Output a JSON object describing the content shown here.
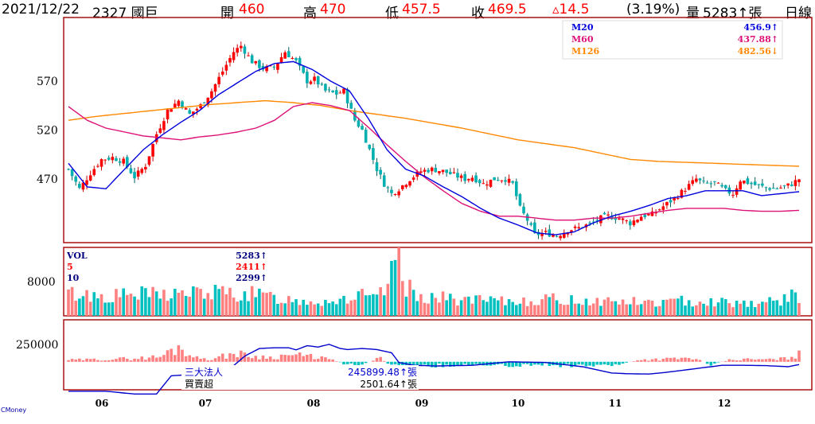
{
  "header": {
    "date": "2021/12/22",
    "stock": "2327 國巨",
    "open_label": "開",
    "open_value": "460",
    "high_label": "高",
    "high_value": "470",
    "low_label": "低",
    "low_value": "457.5",
    "close_label": "收",
    "close_value": "469.5",
    "change": "▵14.5",
    "change_pct": "(3.19%)",
    "volume_label": "量",
    "volume_value": "5283↑張",
    "period": "日線"
  },
  "colors": {
    "up": "#ff0000",
    "down": "#00b0b0",
    "ma20": "#0000dd",
    "ma60": "#dd1177",
    "ma126": "#ff8800",
    "up_vol": "#ff8080",
    "down_vol": "#00c0c0",
    "frame": "#aa1111"
  },
  "chart_data": [
    {
      "type": "candlestick",
      "ylim": [
        405,
        635
      ],
      "yticks": [
        "470",
        "520",
        "570"
      ],
      "legend": [
        {
          "name": "M20",
          "value": "456.9↑",
          "color": "#0000dd"
        },
        {
          "name": "M60",
          "value": "437.88↑",
          "color": "#dd1177"
        },
        {
          "name": "M126",
          "value": "482.56↓",
          "color": "#ff8800"
        }
      ],
      "close_anchors": [
        [
          0,
          480
        ],
        [
          3,
          460
        ],
        [
          6,
          476
        ],
        [
          9,
          490
        ],
        [
          12,
          492
        ],
        [
          15,
          488
        ],
        [
          18,
          472
        ],
        [
          21,
          484
        ],
        [
          24,
          516
        ],
        [
          27,
          540
        ],
        [
          30,
          550
        ],
        [
          33,
          536
        ],
        [
          36,
          545
        ],
        [
          39,
          560
        ],
        [
          42,
          580
        ],
        [
          45,
          600
        ],
        [
          47,
          606
        ],
        [
          50,
          590
        ],
        [
          53,
          583
        ],
        [
          56,
          584
        ],
        [
          59,
          600
        ],
        [
          62,
          590
        ],
        [
          65,
          570
        ],
        [
          67,
          572
        ],
        [
          70,
          560
        ],
        [
          73,
          557
        ],
        [
          75,
          560
        ],
        [
          78,
          530
        ],
        [
          80,
          520
        ],
        [
          82,
          500
        ],
        [
          84,
          480
        ],
        [
          86,
          465
        ],
        [
          88,
          455
        ],
        [
          90,
          460
        ],
        [
          93,
          470
        ],
        [
          96,
          478
        ],
        [
          99,
          480
        ],
        [
          102,
          478
        ],
        [
          105,
          474
        ],
        [
          108,
          470
        ],
        [
          110,
          472
        ],
        [
          113,
          465
        ],
        [
          116,
          470
        ],
        [
          119,
          470
        ],
        [
          121,
          465
        ],
        [
          123,
          440
        ],
        [
          125,
          428
        ],
        [
          127,
          413
        ],
        [
          130,
          415
        ],
        [
          133,
          412
        ],
        [
          136,
          418
        ],
        [
          139,
          420
        ],
        [
          142,
          424
        ],
        [
          145,
          430
        ],
        [
          147,
          432
        ],
        [
          150,
          430
        ],
        [
          153,
          425
        ],
        [
          156,
          432
        ],
        [
          159,
          434
        ],
        [
          162,
          442
        ],
        [
          165,
          450
        ],
        [
          168,
          460
        ],
        [
          171,
          470
        ],
        [
          173,
          465
        ],
        [
          176,
          466
        ],
        [
          179,
          458
        ],
        [
          181,
          455
        ],
        [
          183,
          469
        ],
        [
          186,
          465
        ],
        [
          189,
          462
        ],
        [
          192,
          460
        ],
        [
          195,
          462
        ],
        [
          197,
          465
        ],
        [
          199,
          470
        ]
      ],
      "ma20": [
        [
          0,
          486
        ],
        [
          4,
          462
        ],
        [
          8,
          460
        ],
        [
          12,
          480
        ],
        [
          16,
          500
        ],
        [
          20,
          515
        ],
        [
          24,
          528
        ],
        [
          28,
          540
        ],
        [
          32,
          556
        ],
        [
          36,
          568
        ],
        [
          40,
          580
        ],
        [
          44,
          588
        ],
        [
          48,
          590
        ],
        [
          52,
          582
        ],
        [
          56,
          570
        ],
        [
          60,
          560
        ],
        [
          64,
          532
        ],
        [
          68,
          500
        ],
        [
          72,
          480
        ],
        [
          76,
          473
        ],
        [
          80,
          462
        ],
        [
          84,
          452
        ],
        [
          88,
          440
        ],
        [
          92,
          430
        ],
        [
          96,
          423
        ],
        [
          100,
          415
        ],
        [
          104,
          413
        ],
        [
          108,
          416
        ],
        [
          112,
          425
        ],
        [
          116,
          432
        ],
        [
          120,
          437
        ],
        [
          124,
          443
        ],
        [
          128,
          450
        ],
        [
          132,
          453
        ],
        [
          136,
          458
        ],
        [
          140,
          458
        ],
        [
          144,
          458
        ],
        [
          148,
          453
        ],
        [
          152,
          455
        ],
        [
          156,
          457
        ]
      ],
      "ma60": [
        [
          0,
          544
        ],
        [
          4,
          530
        ],
        [
          8,
          522
        ],
        [
          12,
          518
        ],
        [
          16,
          514
        ],
        [
          20,
          512
        ],
        [
          24,
          510
        ],
        [
          28,
          513
        ],
        [
          32,
          515
        ],
        [
          36,
          518
        ],
        [
          40,
          522
        ],
        [
          44,
          530
        ],
        [
          48,
          544
        ],
        [
          52,
          548
        ],
        [
          56,
          545
        ],
        [
          60,
          540
        ],
        [
          64,
          523
        ],
        [
          68,
          505
        ],
        [
          72,
          488
        ],
        [
          76,
          472
        ],
        [
          80,
          458
        ],
        [
          84,
          445
        ],
        [
          88,
          437
        ],
        [
          92,
          432
        ],
        [
          96,
          432
        ],
        [
          100,
          430
        ],
        [
          104,
          428
        ],
        [
          108,
          428
        ],
        [
          112,
          430
        ],
        [
          116,
          430
        ],
        [
          120,
          432
        ],
        [
          124,
          435
        ],
        [
          128,
          438
        ],
        [
          132,
          440
        ],
        [
          136,
          440
        ],
        [
          140,
          440
        ],
        [
          144,
          438
        ],
        [
          148,
          437
        ],
        [
          152,
          437
        ],
        [
          156,
          438
        ]
      ],
      "ma126": [
        [
          0,
          530
        ],
        [
          6,
          534
        ],
        [
          12,
          537
        ],
        [
          18,
          540
        ],
        [
          24,
          543
        ],
        [
          30,
          546
        ],
        [
          36,
          548
        ],
        [
          42,
          550
        ],
        [
          48,
          548
        ],
        [
          54,
          545
        ],
        [
          60,
          540
        ],
        [
          66,
          536
        ],
        [
          72,
          532
        ],
        [
          78,
          527
        ],
        [
          84,
          522
        ],
        [
          90,
          516
        ],
        [
          96,
          510
        ],
        [
          102,
          506
        ],
        [
          108,
          502
        ],
        [
          114,
          496
        ],
        [
          120,
          490
        ],
        [
          126,
          488
        ],
        [
          132,
          487
        ],
        [
          138,
          486
        ],
        [
          144,
          485
        ],
        [
          150,
          484
        ],
        [
          156,
          483
        ]
      ]
    },
    {
      "type": "bar",
      "legend": [
        {
          "name": "VOL",
          "value": "5283↑",
          "color": "#000080"
        },
        {
          "name": "5",
          "value": "2411↑",
          "color": "#ff0000"
        },
        {
          "name": "10",
          "value": "2299↑",
          "color": "#000080"
        }
      ],
      "ylim": [
        0,
        16000
      ],
      "yticks": [
        "8000"
      ],
      "values_anchor": [
        [
          0,
          5200
        ],
        [
          10,
          4600
        ],
        [
          20,
          5000
        ],
        [
          30,
          5200
        ],
        [
          40,
          5400
        ],
        [
          50,
          5000
        ],
        [
          60,
          3800
        ],
        [
          70,
          3400
        ],
        [
          75,
          4000
        ],
        [
          80,
          4600
        ],
        [
          84,
          3800
        ],
        [
          86,
          6000
        ],
        [
          88,
          9200
        ],
        [
          90,
          16000
        ],
        [
          92,
          7000
        ],
        [
          94,
          5200
        ],
        [
          100,
          4200
        ],
        [
          110,
          3600
        ],
        [
          120,
          3200
        ],
        [
          124,
          3600
        ],
        [
          130,
          3800
        ],
        [
          140,
          3600
        ],
        [
          150,
          3400
        ],
        [
          160,
          3000
        ],
        [
          170,
          3600
        ],
        [
          180,
          3200
        ],
        [
          190,
          3000
        ],
        [
          199,
          4800
        ]
      ]
    },
    {
      "type": "bar_line",
      "legend": [
        {
          "name": "三大法人",
          "value": "245899.48↑張",
          "color": "#0000cc"
        },
        {
          "name": "買賣超",
          "value": "2501.64↑張",
          "color": "#000000"
        }
      ],
      "ylim": [
        -400000,
        600000
      ],
      "yticks": [
        "250000"
      ],
      "line_anchor": [
        [
          0,
          -420000
        ],
        [
          10,
          -420000
        ],
        [
          18,
          -460000
        ],
        [
          24,
          -460000
        ],
        [
          28,
          -200000
        ],
        [
          34,
          -180000
        ],
        [
          40,
          -150000
        ],
        [
          44,
          -100000
        ],
        [
          48,
          80000
        ],
        [
          52,
          190000
        ],
        [
          56,
          200000
        ],
        [
          60,
          200000
        ],
        [
          62,
          170000
        ],
        [
          65,
          230000
        ],
        [
          68,
          210000
        ],
        [
          71,
          250000
        ],
        [
          74,
          190000
        ],
        [
          76,
          175000
        ],
        [
          80,
          190000
        ],
        [
          84,
          175000
        ],
        [
          88,
          130000
        ],
        [
          90,
          -10000
        ],
        [
          94,
          -50000
        ],
        [
          100,
          -60000
        ],
        [
          110,
          -50000
        ],
        [
          120,
          0
        ],
        [
          130,
          -10000
        ],
        [
          140,
          -70000
        ],
        [
          148,
          -160000
        ],
        [
          152,
          -170000
        ],
        [
          158,
          -175000
        ],
        [
          162,
          -155000
        ],
        [
          166,
          -130000
        ],
        [
          172,
          -90000
        ],
        [
          178,
          -50000
        ],
        [
          184,
          -50000
        ],
        [
          190,
          -55000
        ],
        [
          196,
          -70000
        ],
        [
          199,
          -40000
        ]
      ],
      "bars_anchor": [
        [
          0,
          30000
        ],
        [
          10,
          40000
        ],
        [
          20,
          60000
        ],
        [
          25,
          80000
        ],
        [
          30,
          240000
        ],
        [
          35,
          60000
        ],
        [
          40,
          50000
        ],
        [
          45,
          140000
        ],
        [
          50,
          90000
        ],
        [
          55,
          70000
        ],
        [
          60,
          110000
        ],
        [
          65,
          90000
        ],
        [
          70,
          60000
        ],
        [
          75,
          -30000
        ],
        [
          80,
          -40000
        ],
        [
          85,
          60000
        ],
        [
          88,
          -60000
        ],
        [
          92,
          -80000
        ],
        [
          100,
          -60000
        ],
        [
          110,
          -40000
        ],
        [
          115,
          -70000
        ],
        [
          120,
          -60000
        ],
        [
          125,
          -50000
        ],
        [
          130,
          -40000
        ],
        [
          135,
          -60000
        ],
        [
          140,
          -50000
        ],
        [
          145,
          -70000
        ],
        [
          150,
          -40000
        ],
        [
          155,
          30000
        ],
        [
          160,
          40000
        ],
        [
          165,
          50000
        ],
        [
          170,
          60000
        ],
        [
          175,
          -40000
        ],
        [
          180,
          30000
        ],
        [
          185,
          40000
        ],
        [
          190,
          35000
        ],
        [
          195,
          50000
        ],
        [
          199,
          120000
        ]
      ]
    }
  ],
  "x_axis": {
    "labels": [
      "06",
      "07",
      "08",
      "09",
      "10",
      "11",
      "12"
    ]
  },
  "watermark": "CMoney"
}
